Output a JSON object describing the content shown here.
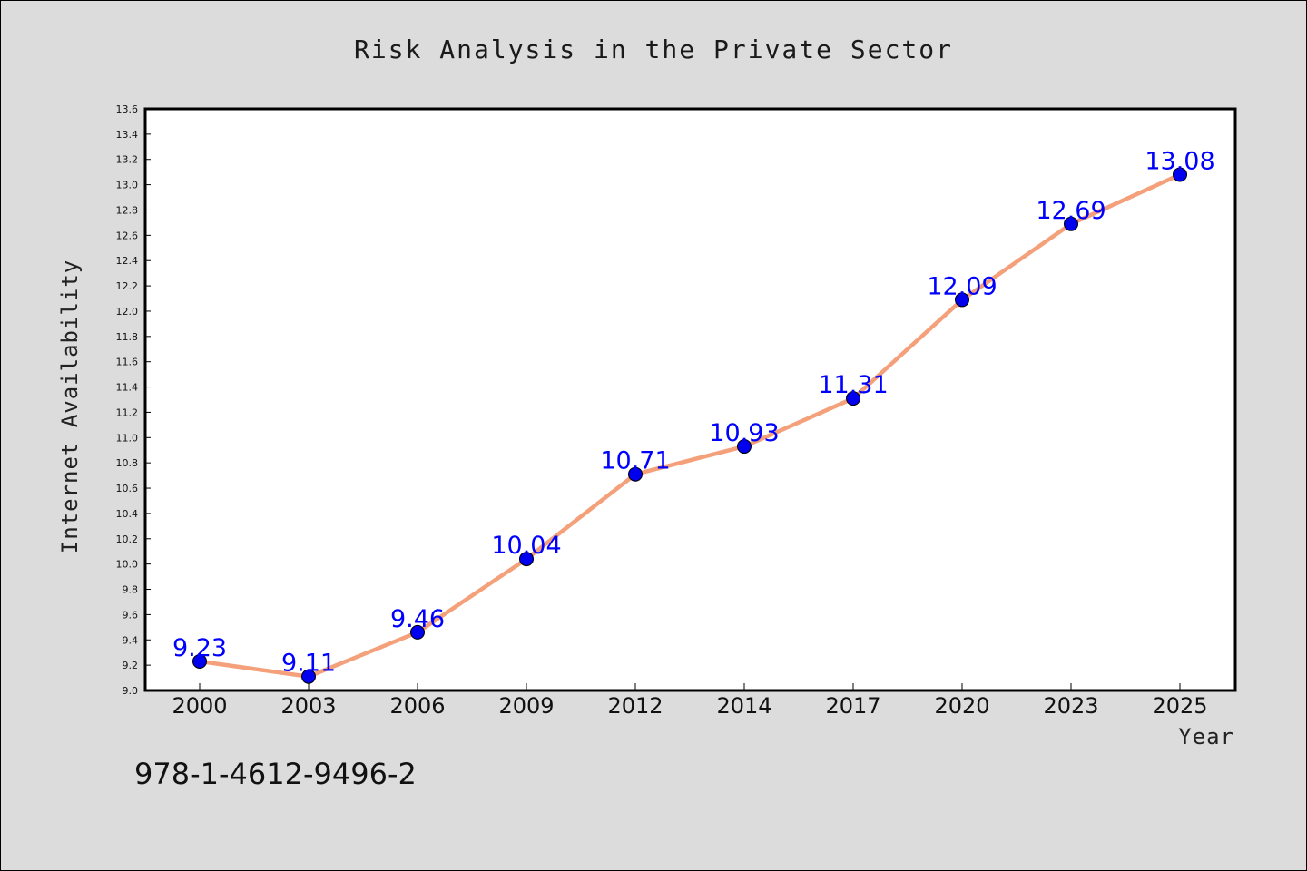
{
  "chart_data": {
    "type": "line",
    "title": "Risk Analysis in the Private Sector",
    "xlabel": "Year",
    "ylabel": "Internet Availability",
    "categories": [
      "2000",
      "2003",
      "2006",
      "2009",
      "2012",
      "2014",
      "2017",
      "2020",
      "2023",
      "2025"
    ],
    "series": [
      {
        "values": [
          9.23,
          9.11,
          9.46,
          10.04,
          10.71,
          10.93,
          11.31,
          12.09,
          12.69,
          13.08
        ],
        "line_color": "#f4a07a",
        "marker_color": "#0000ee"
      }
    ],
    "ylim": [
      9.0,
      13.6
    ],
    "yticks": [
      "9.0",
      "9.2",
      "9.4",
      "9.6",
      "9.8",
      "10.0",
      "10.2",
      "10.4",
      "10.6",
      "10.8",
      "11.0",
      "11.2",
      "11.4",
      "11.6",
      "11.8",
      "12.0",
      "12.2",
      "12.4",
      "12.6",
      "12.8",
      "13.0",
      "13.2",
      "13.4",
      "13.6"
    ],
    "data_labels": [
      "9.23",
      "9.11",
      "9.46",
      "10.04",
      "10.71",
      "10.93",
      "11.31",
      "12.09",
      "12.69",
      "13.08"
    ],
    "grid": false,
    "data_label_color": "#0000ff"
  },
  "annotation": "978-1-4612-9496-2",
  "colors": {
    "background": "#dcdcdc",
    "plot_background": "#ffffff"
  }
}
